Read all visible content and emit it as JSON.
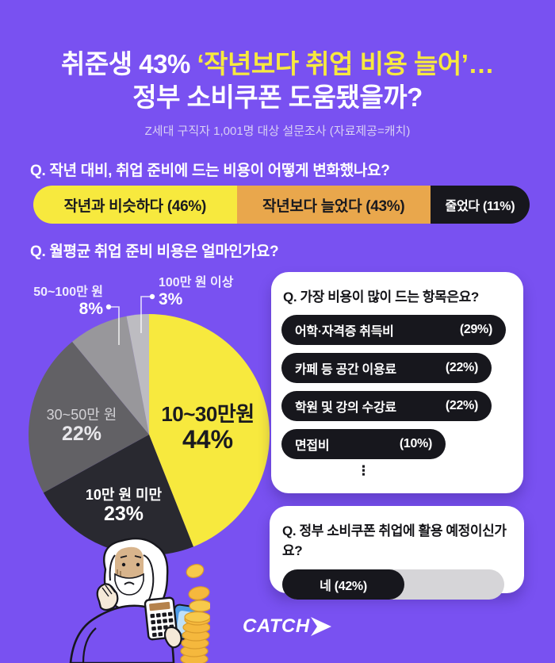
{
  "colors": {
    "background": "#7951F1",
    "accent_yellow": "#F7E93E",
    "accent_orange": "#E9A74C",
    "pill_black": "#17171D",
    "card_white": "#FFFFFF"
  },
  "header": {
    "title_line1_prefix": "취준생 43% ",
    "title_line1_highlight": "‘작년보다 취업 비용 늘어’…",
    "title_line2": "정부 소비쿠폰 도움됐을까?",
    "subtitle": "Z세대 구직자 1,001명 대상 설문조사 (자료제공=캐치)"
  },
  "questions": {
    "q1": "Q. 작년 대비, 취업 준비에 드는 비용이 어떻게 변화했나요?",
    "q2": "Q. 월평균 취업 준비 비용은 얼마인가요?",
    "q3": "Q. 가장 비용이 많이 드는 항목은요?",
    "q4": "Q. 정부 소비쿠폰 취업에 활용 예정이신가요?"
  },
  "list_ellipsis": "⋮",
  "footer": {
    "logo_text": "CATCH"
  },
  "chart_data": [
    {
      "type": "bar",
      "variant": "horizontal-stacked",
      "question": "Q. 작년 대비, 취업 준비에 드는 비용이 어떻게 변화했나요?",
      "unit": "%",
      "segments": [
        {
          "label": "작년과 비슷하다 (46%)",
          "category": "작년과 비슷하다",
          "value": 46,
          "color": "#F7E93E",
          "text_color": "#1A1A1F",
          "display_weight": 41
        },
        {
          "label": "작년보다 늘었다 (43%)",
          "category": "작년보다 늘었다",
          "value": 43,
          "color": "#E9A74C",
          "text_color": "#1A1A1F",
          "display_weight": 39
        },
        {
          "label": "줄었다 (11%)",
          "category": "줄었다",
          "value": 11,
          "color": "#17171D",
          "text_color": "#FFFFFF",
          "display_weight": 20
        }
      ]
    },
    {
      "type": "pie",
      "question": "Q. 월평균 취업 준비 비용은 얼마인가요?",
      "start_angle_deg": 0,
      "direction": "clockwise",
      "slices": [
        {
          "label": "10~30만원",
          "pct_text": "44%",
          "value": 44,
          "color": "#F7E93E"
        },
        {
          "label": "10만 원 미만",
          "pct_text": "23%",
          "value": 23,
          "color": "#292930"
        },
        {
          "label": "30~50만 원",
          "pct_text": "22%",
          "value": 22,
          "color": "#626165"
        },
        {
          "label": "50~100만 원",
          "pct_text": "8%",
          "value": 8,
          "color": "#98979B"
        },
        {
          "label": "100만 원 이상",
          "pct_text": "3%",
          "value": 3,
          "color": "#BDBCC1"
        }
      ]
    },
    {
      "type": "bar",
      "variant": "pill-list",
      "question": "Q. 가장 비용이 많이 드는 항목은요?",
      "unit": "%",
      "truncated": true,
      "items": [
        {
          "label": "어학·자격증 취득비",
          "pct_text": "(29%)",
          "value": 29,
          "display_width": 283
        },
        {
          "label": "카페 등 공간 이용료",
          "pct_text": "(22%)",
          "value": 22,
          "display_width": 265
        },
        {
          "label": "학원 및 강의 수강료",
          "pct_text": "(22%)",
          "value": 22,
          "display_width": 265
        },
        {
          "label": "면접비",
          "pct_text": "(10%)",
          "value": 10,
          "display_width": 207
        }
      ]
    },
    {
      "type": "bar",
      "variant": "progress",
      "question": "Q. 정부 소비쿠폰 취업에 활용 예정이신가요?",
      "categories": [
        "네"
      ],
      "values": [
        42
      ],
      "bar_label": "네  (42%)",
      "display_fill_pct": 55
    }
  ]
}
